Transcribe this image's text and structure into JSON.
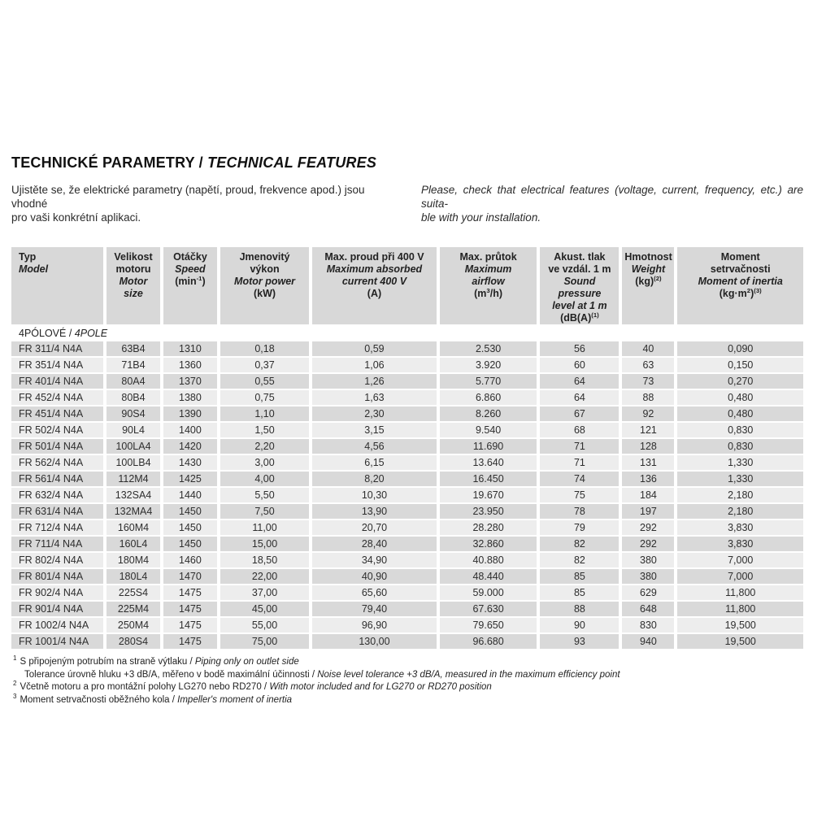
{
  "colors": {
    "header_bg": "#d8d8d8",
    "row_dark": "#d9d9d9",
    "row_light": "#ededed"
  },
  "header": {
    "title_cz": "TECHNICKÉ PARAMETRY",
    "title_sep": " / ",
    "title_en": "TECHNICAL FEATURES",
    "intro_cz_line1": "Ujistěte se, že elektrické parametry (napětí, proud, frekvence apod.) jsou vhodné",
    "intro_cz_line2": "pro vaši konkrétní aplikaci.",
    "intro_en_line1": "Please, check that electrical features (voltage, current, frequency, etc.) are suita-",
    "intro_en_line2": "ble with your installation."
  },
  "table": {
    "columns": [
      {
        "id": "typ-model",
        "lines": [
          [
            {
              "t": "Typ"
            }
          ],
          [
            {
              "t": "Model",
              "i": 1
            }
          ]
        ]
      },
      {
        "id": "velikost-motoru",
        "lines": [
          [
            {
              "t": "Velikost"
            }
          ],
          [
            {
              "t": "motoru"
            }
          ],
          [
            {
              "t": "Motor",
              "i": 1
            }
          ],
          [
            {
              "t": "size",
              "i": 1
            }
          ]
        ]
      },
      {
        "id": "otacky-speed",
        "lines": [
          [
            {
              "t": "Otáčky"
            }
          ],
          [
            {
              "t": "Speed",
              "i": 1
            }
          ],
          [
            {
              "t": "(min"
            },
            {
              "t": "-1",
              "sup": 1
            },
            {
              "t": ")"
            }
          ]
        ]
      },
      {
        "id": "jmenovity-vykon",
        "lines": [
          [
            {
              "t": "Jmenovitý"
            }
          ],
          [
            {
              "t": "výkon"
            }
          ],
          [
            {
              "t": "Motor power",
              "i": 1
            }
          ],
          [
            {
              "t": "(kW)"
            }
          ]
        ]
      },
      {
        "id": "max-proud",
        "lines": [
          [
            {
              "t": "Max. proud při 400 V"
            }
          ],
          [
            {
              "t": "Maximum absorbed",
              "i": 1
            }
          ],
          [
            {
              "t": "current 400 V",
              "i": 1
            }
          ],
          [
            {
              "t": "(A)"
            }
          ]
        ]
      },
      {
        "id": "max-prutok",
        "lines": [
          [
            {
              "t": "Max. průtok"
            }
          ],
          [
            {
              "t": "Maximum",
              "i": 1
            }
          ],
          [
            {
              "t": "airflow",
              "i": 1
            }
          ],
          [
            {
              "t": "(m"
            },
            {
              "t": "3",
              "sup": 1
            },
            {
              "t": "/h)"
            }
          ]
        ]
      },
      {
        "id": "akusticky-tlak",
        "lines": [
          [
            {
              "t": "Akust. tlak"
            }
          ],
          [
            {
              "t": "ve vzdál. 1 m"
            }
          ],
          [
            {
              "t": "Sound pressure",
              "i": 1
            }
          ],
          [
            {
              "t": "level at 1 m",
              "i": 1
            }
          ],
          [
            {
              "t": "(dB(A)"
            },
            {
              "t": "(1)",
              "sup": 1
            }
          ]
        ]
      },
      {
        "id": "hmotnost-weight",
        "lines": [
          [
            {
              "t": "Hmotnost"
            }
          ],
          [
            {
              "t": "Weight",
              "i": 1
            }
          ],
          [
            {
              "t": "(kg)"
            },
            {
              "t": "(2)",
              "sup": 1
            }
          ]
        ]
      },
      {
        "id": "moment-setrvacnosti",
        "lines": [
          [
            {
              "t": "Moment"
            }
          ],
          [
            {
              "t": "setrvačnosti"
            }
          ],
          [
            {
              "t": "Moment of inertia",
              "i": 1
            }
          ],
          [
            {
              "t": "(kg·m"
            },
            {
              "t": "2",
              "sup": 1
            },
            {
              "t": ")"
            },
            {
              "t": "(3)",
              "sup": 1
            }
          ]
        ]
      }
    ],
    "section": {
      "cz": "4PÓLOVÉ",
      "sep": " / ",
      "en": "4POLE"
    },
    "rows": [
      [
        "FR 311/4 N4A",
        "63B4",
        "1310",
        "0,18",
        "0,59",
        "2.530",
        "56",
        "40",
        "0,090"
      ],
      [
        "FR 351/4 N4A",
        "71B4",
        "1360",
        "0,37",
        "1,06",
        "3.920",
        "60",
        "63",
        "0,150"
      ],
      [
        "FR 401/4 N4A",
        "80A4",
        "1370",
        "0,55",
        "1,26",
        "5.770",
        "64",
        "73",
        "0,270"
      ],
      [
        "FR 452/4 N4A",
        "80B4",
        "1380",
        "0,75",
        "1,63",
        "6.860",
        "64",
        "88",
        "0,480"
      ],
      [
        "FR 451/4 N4A",
        "90S4",
        "1390",
        "1,10",
        "2,30",
        "8.260",
        "67",
        "92",
        "0,480"
      ],
      [
        "FR 502/4 N4A",
        "90L4",
        "1400",
        "1,50",
        "3,15",
        "9.540",
        "68",
        "121",
        "0,830"
      ],
      [
        "FR 501/4 N4A",
        "100LA4",
        "1420",
        "2,20",
        "4,56",
        "11.690",
        "71",
        "128",
        "0,830"
      ],
      [
        "FR 562/4 N4A",
        "100LB4",
        "1430",
        "3,00",
        "6,15",
        "13.640",
        "71",
        "131",
        "1,330"
      ],
      [
        "FR 561/4 N4A",
        "112M4",
        "1425",
        "4,00",
        "8,20",
        "16.450",
        "74",
        "136",
        "1,330"
      ],
      [
        "FR 632/4 N4A",
        "132SA4",
        "1440",
        "5,50",
        "10,30",
        "19.670",
        "75",
        "184",
        "2,180"
      ],
      [
        "FR 631/4 N4A",
        "132MA4",
        "1450",
        "7,50",
        "13,90",
        "23.950",
        "78",
        "197",
        "2,180"
      ],
      [
        "FR 712/4 N4A",
        "160M4",
        "1450",
        "11,00",
        "20,70",
        "28.280",
        "79",
        "292",
        "3,830"
      ],
      [
        "FR 711/4 N4A",
        "160L4",
        "1450",
        "15,00",
        "28,40",
        "32.860",
        "82",
        "292",
        "3,830"
      ],
      [
        "FR 802/4 N4A",
        "180M4",
        "1460",
        "18,50",
        "34,90",
        "40.880",
        "82",
        "380",
        "7,000"
      ],
      [
        "FR 801/4 N4A",
        "180L4",
        "1470",
        "22,00",
        "40,90",
        "48.440",
        "85",
        "380",
        "7,000"
      ],
      [
        "FR 902/4 N4A",
        "225S4",
        "1475",
        "37,00",
        "65,60",
        "59.000",
        "85",
        "629",
        "11,800"
      ],
      [
        "FR 901/4 N4A",
        "225M4",
        "1475",
        "45,00",
        "79,40",
        "67.630",
        "88",
        "648",
        "11,800"
      ],
      [
        "FR 1002/4 N4A",
        "250M4",
        "1475",
        "55,00",
        "96,90",
        "79.650",
        "90",
        "830",
        "19,500"
      ],
      [
        "FR 1001/4 N4A",
        "280S4",
        "1475",
        "75,00",
        "130,00",
        "96.680",
        "93",
        "940",
        "19,500"
      ]
    ]
  },
  "footnotes": {
    "sep": " / ",
    "items": [
      {
        "marker": "1",
        "cz": "S připojeným potrubím na straně výtlaku",
        "en": "Piping only on outlet side",
        "indent": false
      },
      {
        "marker": "",
        "cz": "Tolerance úrovně hluku +3 dB/A, měřeno v bodě maximální účinnosti",
        "en": "Noise level tolerance +3 dB/A, measured in the maximum efficiency point",
        "indent": true
      },
      {
        "marker": "2",
        "cz": "Včetně motoru a pro montážní polohy LG270 nebo RD270",
        "en": "With motor included and for LG270 or RD270 position",
        "indent": false
      },
      {
        "marker": "3",
        "cz": "Moment setrvačnosti oběžného kola",
        "en": "Impeller's moment of inertia",
        "indent": false
      }
    ]
  }
}
